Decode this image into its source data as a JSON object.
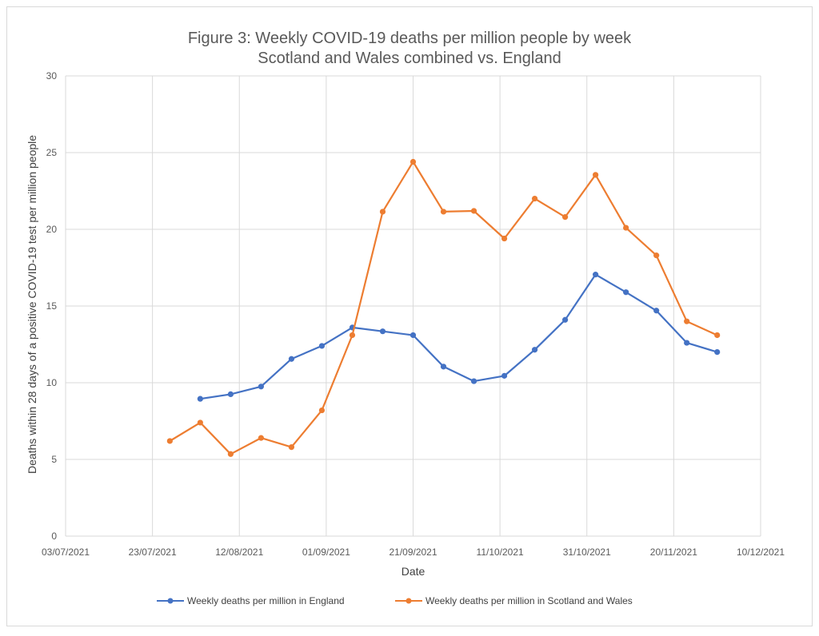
{
  "chart_data": {
    "type": "line",
    "title_line1": "Figure 3: Weekly COVID-19 deaths per million people by week",
    "title_line2": "Scotland and Wales combined vs. England",
    "xlabel": "Date",
    "ylabel": "Deaths within 28 days of a positive COVID-19 test per million people",
    "x_ticks": [
      "03/07/2021",
      "23/07/2021",
      "12/08/2021",
      "01/09/2021",
      "21/09/2021",
      "11/10/2021",
      "31/10/2021",
      "20/11/2021",
      "10/12/2021"
    ],
    "xlim": [
      "03/07/2021",
      "10/12/2021"
    ],
    "y_ticks": [
      0,
      5,
      10,
      15,
      20,
      25,
      30
    ],
    "ylim": [
      0,
      30
    ],
    "grid": true,
    "legend_position": "bottom",
    "series": [
      {
        "name": "Weekly deaths per million in England",
        "color": "#4472c4",
        "points": [
          {
            "x": "03/08/2021",
            "y": 8.95
          },
          {
            "x": "10/08/2021",
            "y": 9.25
          },
          {
            "x": "17/08/2021",
            "y": 9.75
          },
          {
            "x": "24/08/2021",
            "y": 11.55
          },
          {
            "x": "31/08/2021",
            "y": 12.4
          },
          {
            "x": "07/09/2021",
            "y": 13.6
          },
          {
            "x": "14/09/2021",
            "y": 13.35
          },
          {
            "x": "21/09/2021",
            "y": 13.1
          },
          {
            "x": "28/09/2021",
            "y": 11.05
          },
          {
            "x": "05/10/2021",
            "y": 10.1
          },
          {
            "x": "12/10/2021",
            "y": 10.45
          },
          {
            "x": "19/10/2021",
            "y": 12.15
          },
          {
            "x": "26/10/2021",
            "y": 14.1
          },
          {
            "x": "02/11/2021",
            "y": 17.05
          },
          {
            "x": "09/11/2021",
            "y": 15.9
          },
          {
            "x": "16/11/2021",
            "y": 14.7
          },
          {
            "x": "23/11/2021",
            "y": 12.6
          },
          {
            "x": "30/11/2021",
            "y": 12.0
          }
        ]
      },
      {
        "name": "Weekly deaths per million in Scotland and Wales",
        "color": "#ed7d31",
        "points": [
          {
            "x": "27/07/2021",
            "y": 6.2
          },
          {
            "x": "03/08/2021",
            "y": 7.4
          },
          {
            "x": "10/08/2021",
            "y": 5.35
          },
          {
            "x": "17/08/2021",
            "y": 6.4
          },
          {
            "x": "24/08/2021",
            "y": 5.8
          },
          {
            "x": "31/08/2021",
            "y": 8.2
          },
          {
            "x": "07/09/2021",
            "y": 13.1
          },
          {
            "x": "14/09/2021",
            "y": 21.15
          },
          {
            "x": "21/09/2021",
            "y": 24.4
          },
          {
            "x": "28/09/2021",
            "y": 21.15
          },
          {
            "x": "05/10/2021",
            "y": 21.2
          },
          {
            "x": "12/10/2021",
            "y": 19.4
          },
          {
            "x": "19/10/2021",
            "y": 22.0
          },
          {
            "x": "26/10/2021",
            "y": 20.8
          },
          {
            "x": "02/11/2021",
            "y": 23.55
          },
          {
            "x": "09/11/2021",
            "y": 20.1
          },
          {
            "x": "16/11/2021",
            "y": 18.3
          },
          {
            "x": "23/11/2021",
            "y": 14.0
          },
          {
            "x": "30/11/2021",
            "y": 13.1
          }
        ]
      }
    ]
  }
}
